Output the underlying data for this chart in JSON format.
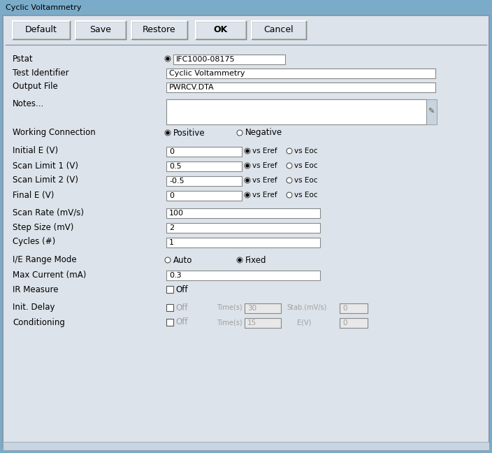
{
  "title": "Cyclic Voltammetry",
  "title_bar_color": "#7aacca",
  "dialog_bg": "#dde3ea",
  "button_bg": "#dde3ea",
  "white": "#ffffff",
  "gray_text": "#a0a0a0",
  "dark_text": "#000000",
  "buttons": [
    "Default",
    "Save",
    "Restore",
    "OK",
    "Cancel"
  ],
  "pstat_value": "IFC1000-08175",
  "test_id_value": "Cyclic Voltammetry",
  "output_file_value": "PWRCV.DTA",
  "working_options": [
    "Positive",
    "Negative"
  ],
  "working_selected": 0,
  "e_rows": [
    {
      "label": "Initial E (V)",
      "value": "0"
    },
    {
      "label": "Scan Limit 1 (V)",
      "value": "0.5"
    },
    {
      "label": "Scan Limit 2 (V)",
      "value": "-0.5"
    },
    {
      "label": "Final E (V)",
      "value": "0"
    }
  ],
  "scan_rate": "100",
  "step_size": "2",
  "cycles": "1",
  "ie_range_options": [
    "Auto",
    "Fixed"
  ],
  "ie_range_selected": 1,
  "max_current": "0.3",
  "init_delay_time": "30",
  "init_delay_stab": "0",
  "cond_time": "15",
  "cond_ev": "0"
}
